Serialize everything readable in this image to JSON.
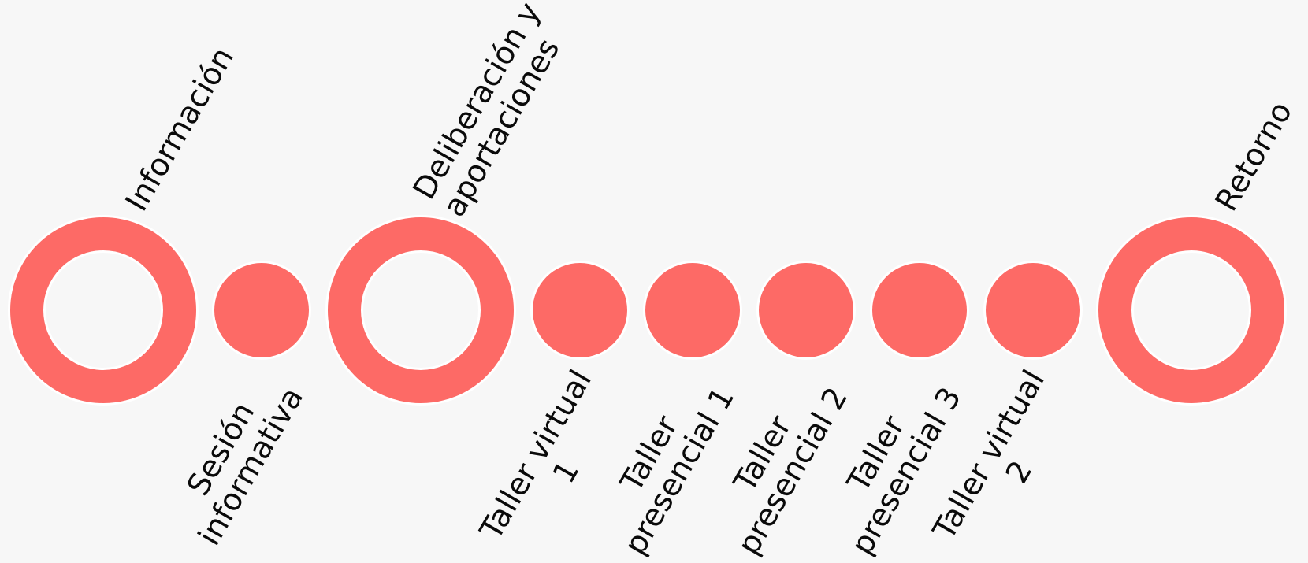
{
  "colors": {
    "accent": "#fd6a66",
    "background": "#f7f7f7",
    "text": "#0a0a0a"
  },
  "phases": [
    {
      "label": "Información"
    },
    {
      "label": "Deliberación y\naportaciones"
    },
    {
      "label": "Retorno"
    }
  ],
  "events": [
    {
      "label": "Sesión\ninformativa"
    },
    {
      "label": "Taller virtual\n1"
    },
    {
      "label": "Taller\npresencial 1"
    },
    {
      "label": "Taller\npresencial 2"
    },
    {
      "label": "Taller\npresencial 3"
    },
    {
      "label": "Taller virtual\n2"
    }
  ]
}
